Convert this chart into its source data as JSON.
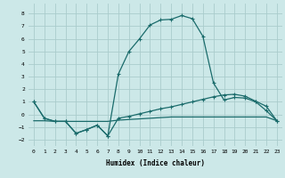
{
  "xlabel": "Humidex (Indice chaleur)",
  "background_color": "#cce8e8",
  "grid_color": "#aacccc",
  "line_color": "#1a6b6b",
  "xlim": [
    -0.5,
    23.5
  ],
  "ylim": [
    -2.5,
    8.8
  ],
  "xticks": [
    0,
    1,
    2,
    3,
    4,
    5,
    6,
    7,
    8,
    9,
    10,
    11,
    12,
    13,
    14,
    15,
    16,
    17,
    18,
    19,
    20,
    21,
    22,
    23
  ],
  "yticks": [
    -2,
    -1,
    0,
    1,
    2,
    3,
    4,
    5,
    6,
    7,
    8
  ],
  "line_main_x": [
    0,
    1,
    2,
    3,
    4,
    5,
    6,
    7,
    8,
    9,
    10,
    11,
    12,
    13,
    14,
    15,
    16,
    17,
    18,
    19,
    20,
    21,
    22,
    23
  ],
  "line_main_y": [
    1.0,
    -0.3,
    -0.55,
    -0.55,
    -1.5,
    -1.2,
    -0.85,
    -1.7,
    3.2,
    5.0,
    6.0,
    7.1,
    7.5,
    7.55,
    7.85,
    7.6,
    6.2,
    2.5,
    1.15,
    1.35,
    1.3,
    1.0,
    0.3,
    -0.5
  ],
  "line_slow_x": [
    0,
    1,
    2,
    3,
    4,
    5,
    6,
    7,
    8,
    9,
    10,
    11,
    12,
    13,
    14,
    15,
    16,
    17,
    18,
    19,
    20,
    21,
    22,
    23
  ],
  "line_slow_y": [
    1.0,
    -0.3,
    -0.55,
    -0.55,
    -1.5,
    -1.2,
    -0.85,
    -1.7,
    -0.3,
    -0.15,
    0.05,
    0.25,
    0.45,
    0.6,
    0.8,
    1.0,
    1.2,
    1.4,
    1.55,
    1.6,
    1.45,
    1.05,
    0.65,
    -0.5
  ],
  "line_flat_x": [
    0,
    1,
    2,
    3,
    4,
    5,
    6,
    7,
    8,
    9,
    10,
    11,
    12,
    13,
    14,
    15,
    16,
    17,
    18,
    19,
    20,
    21,
    22,
    23
  ],
  "line_flat_y": [
    -0.5,
    -0.5,
    -0.55,
    -0.55,
    -0.55,
    -0.55,
    -0.55,
    -0.55,
    -0.45,
    -0.4,
    -0.35,
    -0.3,
    -0.25,
    -0.2,
    -0.2,
    -0.2,
    -0.2,
    -0.2,
    -0.2,
    -0.2,
    -0.2,
    -0.2,
    -0.2,
    -0.5
  ]
}
